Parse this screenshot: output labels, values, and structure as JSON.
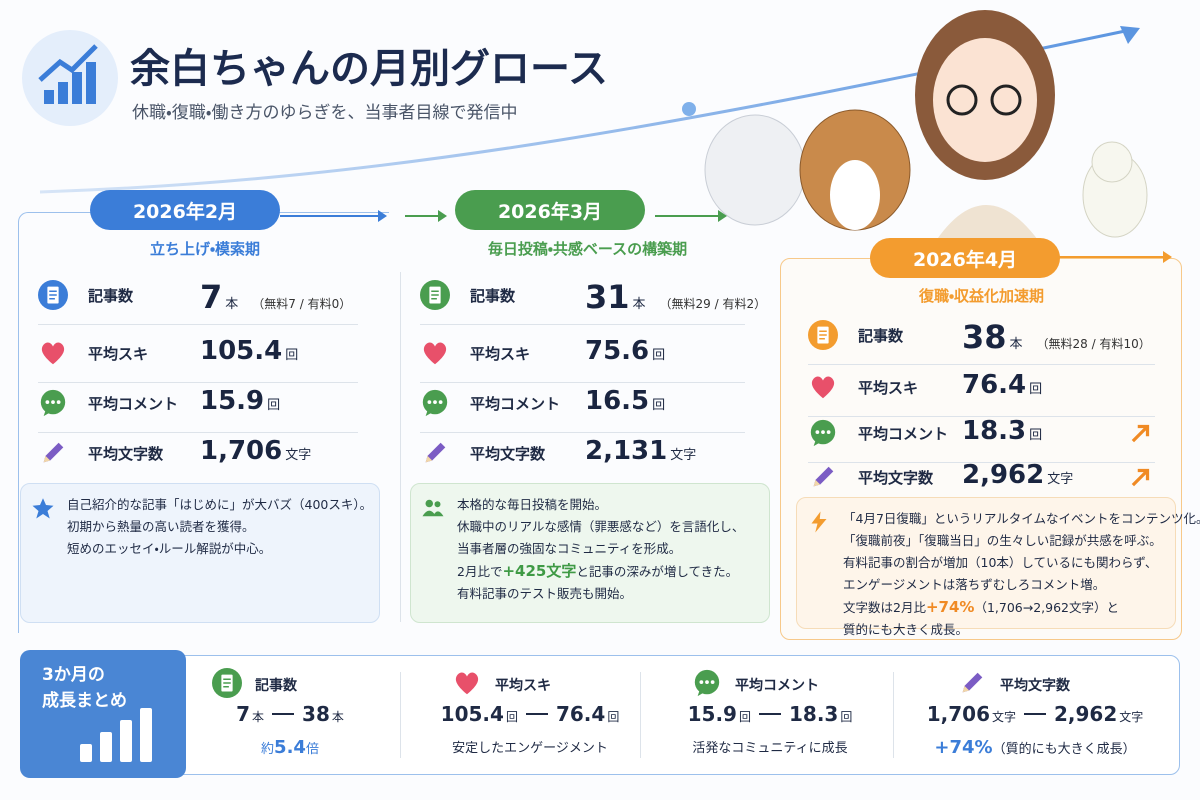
{
  "header": {
    "title": "余白ちゃんの月別グロース",
    "subtitle": "休職・復職・働き方のゆらぎを、当事者目線で発信中"
  },
  "months": [
    {
      "label": "2026年2月",
      "phase": "立ち上げ・模索期",
      "stats": [
        {
          "name": "記事数",
          "value": 7,
          "unit": "本",
          "note": "（無料7 / 有料0）"
        },
        {
          "name": "平均スキ",
          "value": 105.4,
          "unit": "回"
        },
        {
          "name": "平均コメント",
          "value": 15.9,
          "unit": "回"
        },
        {
          "name": "平均文字数",
          "value": "1,706",
          "unit": "文字"
        }
      ],
      "notes": [
        "自己紹介的な記事「はじめに」が大バズ（400スキ）。",
        "初期から熱量の高い読者を獲得。",
        "短めのエッセイ・ルール解説が中心。"
      ]
    },
    {
      "label": "2026年3月",
      "phase": "毎日投稿・共感ベースの構築期",
      "stats": [
        {
          "name": "記事数",
          "value": 31,
          "unit": "本",
          "note": "（無料29 / 有料2）"
        },
        {
          "name": "平均スキ",
          "value": 75.6,
          "unit": "回"
        },
        {
          "name": "平均コメント",
          "value": 16.5,
          "unit": "回"
        },
        {
          "name": "平均文字数",
          "value": "2,131",
          "unit": "文字"
        }
      ],
      "notes": [
        "本格的な毎日投稿を開始。",
        "休職中のリアルな感情（罪悪感など）を言語化し、",
        "当事者層の強固なコミュニティを形成。",
        {
          "before": "2月比で",
          "highlight": "+425文字",
          "after": "と記事の深みが増してきた。"
        },
        "有料記事のテスト販売も開始。"
      ]
    },
    {
      "label": "2026年4月",
      "phase": "復職・収益化加速期",
      "stats": [
        {
          "name": "記事数",
          "value": 38,
          "unit": "本",
          "note": "（無料28 / 有料10）"
        },
        {
          "name": "平均スキ",
          "value": 76.4,
          "unit": "回"
        },
        {
          "name": "平均コメント",
          "value": 18.3,
          "unit": "回"
        },
        {
          "name": "平均文字数",
          "value": "2,962",
          "unit": "文字"
        }
      ],
      "notes": [
        "「4月7日復職」というリアルタイムなイベントをコンテンツ化。",
        "「復職前夜」「復職当日」の生々しい記録が共感を呼ぶ。",
        "有料記事の割合が増加（10本）しているにも関わらず、",
        "エンゲージメントは落ちずむしろコメント増。",
        {
          "before": "文字数は2月比",
          "highlight": "+74%",
          "after": "（1,706→2,962文字）と"
        },
        "質的にも大きく成長。"
      ]
    }
  ],
  "summary": {
    "title": [
      "3か月の",
      "成長まとめ"
    ],
    "items": [
      {
        "name": "記事数",
        "from": 7,
        "from_unit": "本",
        "to": 38,
        "to_unit": "本",
        "sub": {
          "before": "約",
          "highlight": "5.4",
          "after": "倍"
        }
      },
      {
        "name": "平均スキ",
        "from": 105.4,
        "from_unit": "回",
        "to": 76.4,
        "to_unit": "回",
        "sub": "安定したエンゲージメント"
      },
      {
        "name": "平均コメント",
        "from": 15.9,
        "from_unit": "回",
        "to": 18.3,
        "to_unit": "回",
        "sub": "活発なコミュニティに成長"
      },
      {
        "name": "平均文字数",
        "from": "1,706",
        "from_unit": "文字",
        "to": "2,962",
        "to_unit": "文字",
        "sub": {
          "highlight": "+74%",
          "after": "（質的にも大きく成長）"
        }
      }
    ]
  }
}
